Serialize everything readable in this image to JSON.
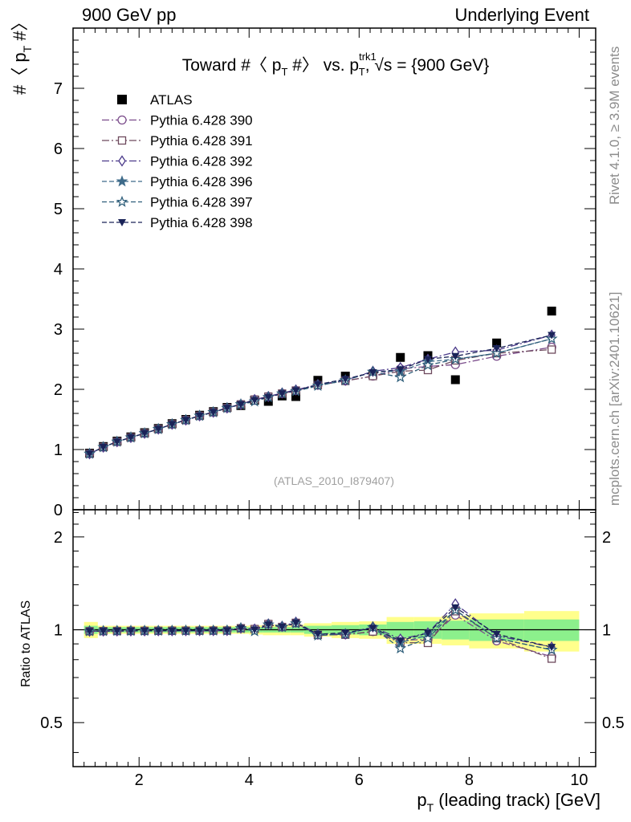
{
  "header": {
    "left": "900 GeV pp",
    "right": "Underlying Event"
  },
  "side": {
    "rivet": "Rivet 4.1.0, ≥ 3.9M events",
    "mcplots": "mcplots.cern.ch [arXiv:2401.10621]"
  },
  "chart_data": {
    "type": "scatter",
    "title_parts": {
      "pre": "Toward #〈 p",
      "sub1": "T",
      "mid": " #〉 vs. p",
      "sup": "trk1",
      "sub2": "T",
      "post": ", √s = {900 GeV}"
    },
    "watermark": "(ATLAS_2010_I879407)",
    "ylabel_parts": {
      "pre": "#〈 p",
      "sub": "T",
      "post": " #〉"
    },
    "xlabel_parts": {
      "pre": "p",
      "sub": "T",
      "post": " (leading track) [GeV]"
    },
    "ratio_ylabel": "Ratio to ATLAS",
    "xlim": [
      0.8,
      10.3
    ],
    "ylim": [
      0,
      8
    ],
    "ratio_ylim": [
      0.36,
      2.45
    ],
    "x_ticks": [
      2,
      4,
      6,
      8,
      10
    ],
    "y_ticks": [
      0,
      1,
      2,
      3,
      4,
      5,
      6,
      7
    ],
    "ratio_ticks": [
      0.5,
      1,
      2
    ],
    "x": [
      1.1,
      1.35,
      1.6,
      1.85,
      2.1,
      2.35,
      2.6,
      2.85,
      3.1,
      3.35,
      3.6,
      3.85,
      4.1,
      4.35,
      4.6,
      4.85,
      5.25,
      5.75,
      6.25,
      6.75,
      7.25,
      7.75,
      8.5,
      9.5
    ],
    "bin_edges": [
      1,
      1.25,
      1.5,
      1.75,
      2,
      2.25,
      2.5,
      2.75,
      3,
      3.25,
      3.5,
      3.75,
      4,
      4.25,
      4.5,
      4.75,
      5,
      5.5,
      6,
      6.5,
      7,
      7.5,
      8,
      9,
      10
    ],
    "band_inner": [
      0.03,
      0.02,
      0.02,
      0.02,
      0.02,
      0.02,
      0.02,
      0.02,
      0.02,
      0.02,
      0.02,
      0.02,
      0.02,
      0.02,
      0.02,
      0.02,
      0.03,
      0.035,
      0.04,
      0.06,
      0.065,
      0.07,
      0.08,
      0.08
    ],
    "band_outer": [
      0.06,
      0.03,
      0.03,
      0.03,
      0.03,
      0.03,
      0.03,
      0.03,
      0.03,
      0.03,
      0.03,
      0.03,
      0.035,
      0.04,
      0.04,
      0.04,
      0.05,
      0.06,
      0.065,
      0.1,
      0.1,
      0.11,
      0.13,
      0.15
    ],
    "series": [
      {
        "name": "ATLAS",
        "color": "#000000",
        "marker": "filled-square",
        "dash": "",
        "values": [
          0.94,
          1.05,
          1.14,
          1.21,
          1.28,
          1.35,
          1.43,
          1.5,
          1.57,
          1.63,
          1.7,
          1.73,
          1.82,
          1.8,
          1.89,
          1.88,
          2.15,
          2.22,
          2.25,
          2.53,
          2.56,
          2.16,
          2.77,
          3.3
        ]
      },
      {
        "name": "Pythia 6.428 390",
        "color": "#7a4b8a",
        "marker": "open-circle",
        "dash": "9,3,2,3",
        "values": [
          0.93,
          1.04,
          1.13,
          1.2,
          1.27,
          1.34,
          1.42,
          1.49,
          1.56,
          1.62,
          1.69,
          1.75,
          1.83,
          1.88,
          1.93,
          1.98,
          2.07,
          2.14,
          2.22,
          2.34,
          2.38,
          2.41,
          2.55,
          2.7
        ]
      },
      {
        "name": "Pythia 6.428 391",
        "color": "#6e4a5e",
        "marker": "open-square",
        "dash": "9,3,2,3",
        "values": [
          0.93,
          1.04,
          1.13,
          1.2,
          1.27,
          1.34,
          1.42,
          1.49,
          1.56,
          1.62,
          1.69,
          1.75,
          1.83,
          1.88,
          1.93,
          1.98,
          2.07,
          2.14,
          2.22,
          2.3,
          2.32,
          2.48,
          2.6,
          2.66
        ]
      },
      {
        "name": "Pythia 6.428 392",
        "color": "#4b3a8a",
        "marker": "open-diamond",
        "dash": "9,3,2,3",
        "values": [
          0.93,
          1.04,
          1.13,
          1.2,
          1.27,
          1.34,
          1.42,
          1.49,
          1.56,
          1.62,
          1.69,
          1.75,
          1.83,
          1.88,
          1.94,
          1.99,
          2.08,
          2.15,
          2.3,
          2.36,
          2.5,
          2.62,
          2.65,
          2.9
        ]
      },
      {
        "name": "Pythia 6.428 396",
        "color": "#3e6b8a",
        "marker": "filled-star",
        "dash": "6,3",
        "values": [
          0.93,
          1.04,
          1.13,
          1.2,
          1.27,
          1.34,
          1.42,
          1.49,
          1.56,
          1.62,
          1.69,
          1.75,
          1.8,
          1.87,
          1.93,
          1.97,
          2.06,
          2.15,
          2.29,
          2.3,
          2.46,
          2.5,
          2.6,
          2.84
        ]
      },
      {
        "name": "Pythia 6.428 397",
        "color": "#2e5e7a",
        "marker": "open-star",
        "dash": "6,3",
        "values": [
          0.93,
          1.04,
          1.13,
          1.2,
          1.27,
          1.34,
          1.42,
          1.49,
          1.56,
          1.62,
          1.69,
          1.75,
          1.8,
          1.87,
          1.93,
          1.97,
          2.06,
          2.15,
          2.29,
          2.2,
          2.4,
          2.5,
          2.6,
          2.84
        ]
      },
      {
        "name": "Pythia 6.428 398",
        "color": "#1a2358",
        "marker": "filled-triangle-down",
        "dash": "6,3",
        "values": [
          0.93,
          1.04,
          1.13,
          1.2,
          1.27,
          1.34,
          1.42,
          1.49,
          1.56,
          1.62,
          1.69,
          1.75,
          1.82,
          1.87,
          1.93,
          1.98,
          2.08,
          2.17,
          2.28,
          2.33,
          2.5,
          2.55,
          2.68,
          2.9
        ]
      }
    ]
  }
}
